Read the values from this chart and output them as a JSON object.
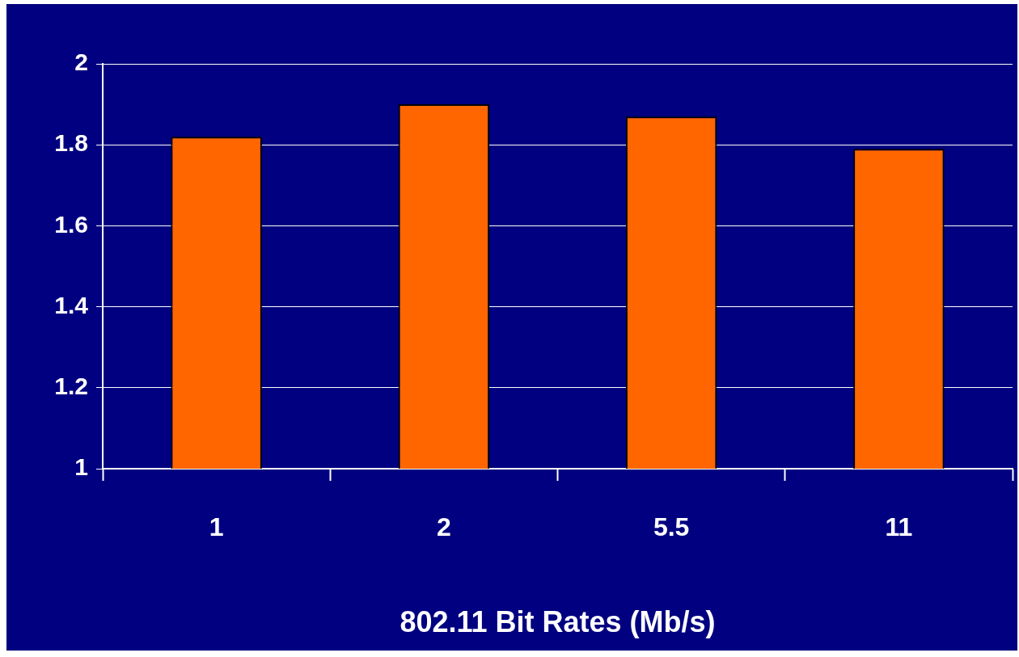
{
  "chart_data": {
    "type": "bar",
    "xlabel": "802.11 Bit Rates (Mb/s)",
    "categories": [
      "1",
      "2",
      "5.5",
      "11"
    ],
    "values": [
      1.82,
      1.9,
      1.87,
      1.79
    ],
    "color": "#ff6600",
    "ylim": [
      1,
      2
    ],
    "yticks": [
      1,
      1.2,
      1.4,
      1.6,
      1.8,
      2
    ],
    "grid": "y"
  }
}
